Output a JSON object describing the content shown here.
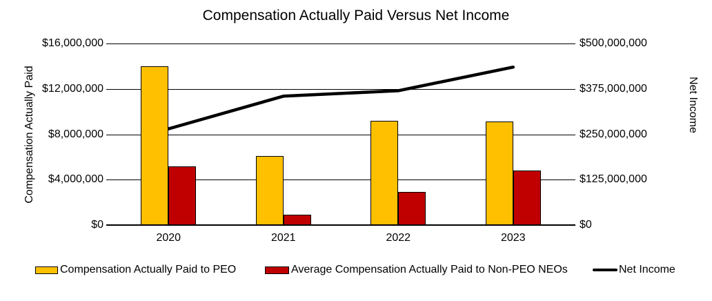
{
  "title": "Compensation Actually Paid Versus Net Income",
  "left_axis": {
    "label": "Compensation Actually Paid",
    "ticks": [
      "$16,000,000",
      "$12,000,000",
      "$8,000,000",
      "$4,000,000",
      "$0"
    ]
  },
  "right_axis": {
    "label": "Net Income",
    "ticks": [
      "$500,000,000",
      "$375,000,000",
      "$250,000,000",
      "$125,000,000",
      "$0"
    ]
  },
  "legend": [
    {
      "label": "Compensation Actually Paid to PEO",
      "color": "#FFC000",
      "type": "bar"
    },
    {
      "label": "Average Compensation Actually Paid to Non-PEO NEOs",
      "color": "#C00000",
      "type": "bar"
    },
    {
      "label": "Net Income",
      "color": "#000000",
      "type": "line"
    }
  ],
  "chart_data": {
    "type": "bar+line",
    "title": "Compensation Actually Paid Versus Net Income",
    "categories": [
      "2020",
      "2021",
      "2022",
      "2023"
    ],
    "series": [
      {
        "name": "Compensation Actually Paid to PEO",
        "type": "bar",
        "axis": "left",
        "color": "#FFC000",
        "values": [
          14000000,
          6100000,
          9200000,
          9100000
        ]
      },
      {
        "name": "Average Compensation Actually Paid to Non-PEO NEOs",
        "type": "bar",
        "axis": "left",
        "color": "#C00000",
        "values": [
          5200000,
          900000,
          2900000,
          4800000
        ]
      },
      {
        "name": "Net Income",
        "type": "line",
        "axis": "right",
        "color": "#000000",
        "values": [
          265000000,
          355000000,
          370000000,
          435000000
        ]
      }
    ],
    "left_ylabel": "Compensation Actually Paid",
    "right_ylabel": "Net Income",
    "left_ylim": [
      0,
      16000000
    ],
    "right_ylim": [
      0,
      500000000
    ],
    "grid": true,
    "legend_position": "bottom"
  }
}
